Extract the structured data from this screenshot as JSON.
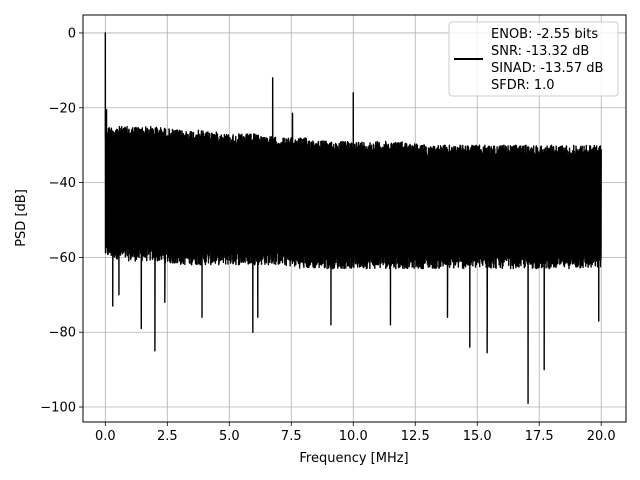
{
  "chart_data": {
    "type": "line",
    "title": "",
    "xlabel": "Frequency [MHz]",
    "ylabel": "PSD [dB]",
    "xlim": [
      -0.9,
      21.0
    ],
    "ylim": [
      -104.0,
      4.8
    ],
    "xticks": [
      0.0,
      2.5,
      5.0,
      7.5,
      10.0,
      12.5,
      15.0,
      17.5,
      20.0
    ],
    "xtick_labels": [
      "0.0",
      "2.5",
      "5.0",
      "7.5",
      "10.0",
      "12.5",
      "15.0",
      "17.5",
      "20.0"
    ],
    "yticks": [
      0,
      -20,
      -40,
      -60,
      -80,
      -100
    ],
    "ytick_labels": [
      "0",
      "−20",
      "−40",
      "−60",
      "−80",
      "−100"
    ],
    "grid": true,
    "legend_position": "upper right",
    "series": [
      {
        "name": "ENOB: -2.55 bits\nSNR: -13.32 dB\nSINAD: -13.57 dB\nSFDR: 1.0",
        "color": "#000000",
        "noise_envelope": {
          "x": [
            0.0,
            0.1,
            1.0,
            2.0,
            3.0,
            4.0,
            5.0,
            6.0,
            7.0,
            8.0,
            9.0,
            10.0,
            11.0,
            12.0,
            13.0,
            14.0,
            15.0,
            16.0,
            17.0,
            18.0,
            19.0,
            20.0
          ],
          "top": [
            -26,
            -25,
            -25,
            -25,
            -26,
            -26,
            -27,
            -27,
            -28,
            -28,
            -29,
            -29,
            -29,
            -29,
            -30,
            -30,
            -30,
            -30,
            -30,
            -30,
            -30,
            -30
          ],
          "bottom": [
            -60,
            -60,
            -61,
            -61,
            -62,
            -62,
            -62,
            -62,
            -62,
            -63,
            -63,
            -63,
            -63,
            -63,
            -63,
            -63,
            -63,
            -63,
            -63,
            -63,
            -63,
            -63
          ]
        },
        "peaks": [
          {
            "x": 0.0,
            "y": 0.0
          },
          {
            "x": 0.05,
            "y": -20.5
          },
          {
            "x": 6.75,
            "y": -12.0
          },
          {
            "x": 7.55,
            "y": -21.5
          },
          {
            "x": 10.0,
            "y": -16.0
          }
        ],
        "dips": [
          {
            "x": 0.3,
            "y": -73.0
          },
          {
            "x": 0.55,
            "y": -70.0
          },
          {
            "x": 1.45,
            "y": -79.0
          },
          {
            "x": 2.0,
            "y": -85.0
          },
          {
            "x": 2.4,
            "y": -72.0
          },
          {
            "x": 3.9,
            "y": -76.0
          },
          {
            "x": 5.95,
            "y": -80.0
          },
          {
            "x": 6.15,
            "y": -76.0
          },
          {
            "x": 9.1,
            "y": -78.0
          },
          {
            "x": 11.5,
            "y": -78.0
          },
          {
            "x": 13.8,
            "y": -76.0
          },
          {
            "x": 14.7,
            "y": -84.0
          },
          {
            "x": 15.4,
            "y": -85.5
          },
          {
            "x": 17.05,
            "y": -99.0
          },
          {
            "x": 17.7,
            "y": -90.0
          },
          {
            "x": 19.9,
            "y": -77.0
          }
        ]
      }
    ]
  }
}
